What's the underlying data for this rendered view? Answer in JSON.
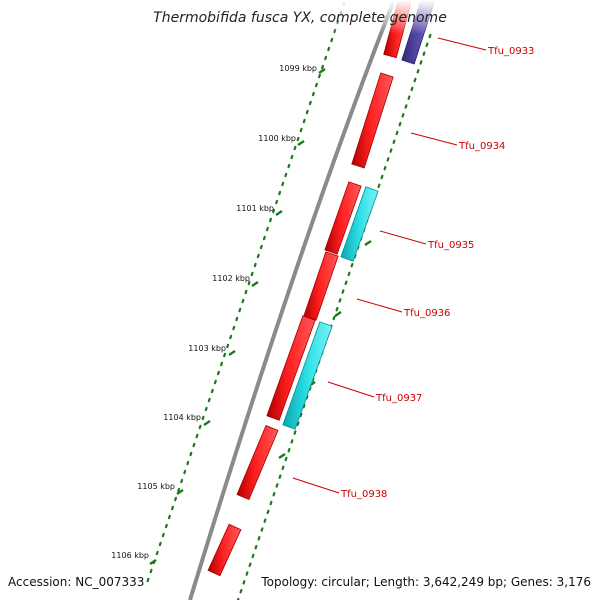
{
  "title": "Thermobifida fusca YX, complete genome",
  "footer": {
    "accession": "Accession: NC_007333",
    "summary": "Topology: circular; Length: 3,642,249 bp; Genes: 3,176"
  },
  "colors": {
    "forward_cds": "#ff1010",
    "reverse_cds": "#22d0d8",
    "other_feature": "#4a3c94",
    "backbone": "#8c8c8c",
    "tick_mark": "#1a7a1a",
    "label_red": "#cc0000"
  },
  "position_ticks": [
    {
      "label": "1099 kbp"
    },
    {
      "label": "1100 kbp"
    },
    {
      "label": "1101 kbp"
    },
    {
      "label": "1102 kbp"
    },
    {
      "label": "1103 kbp"
    },
    {
      "label": "1104 kbp"
    },
    {
      "label": "1105 kbp"
    },
    {
      "label": "1106 kbp"
    }
  ],
  "gene_labels": [
    {
      "label": "Tfu_0933"
    },
    {
      "label": "Tfu_0934"
    },
    {
      "label": "Tfu_0935"
    },
    {
      "label": "Tfu_0936"
    },
    {
      "label": "Tfu_0937"
    },
    {
      "label": "Tfu_0938"
    }
  ]
}
